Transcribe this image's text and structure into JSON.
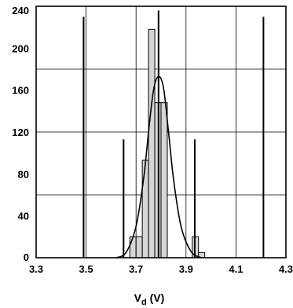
{
  "chart_data": {
    "type": "histogram",
    "title": "",
    "xlabel": "V",
    "xlabel_subscript": "d",
    "xlabel_unit": " (V)",
    "x_ticks": [
      "3.3",
      "3.5",
      "3.7",
      "3.9",
      "4.1",
      "4.3"
    ],
    "y_ticks": [
      "0",
      "40",
      "80",
      "120",
      "160",
      "200",
      "240"
    ],
    "xlim": [
      3.3,
      4.3
    ],
    "ylim": [
      0,
      240
    ],
    "grid": true,
    "bin_width": 0.025,
    "bins": [
      {
        "x_start": 3.675,
        "x_end": 3.7,
        "count": 20
      },
      {
        "x_start": 3.7,
        "x_end": 3.725,
        "count": 20
      },
      {
        "x_start": 3.725,
        "x_end": 3.75,
        "count": 93
      },
      {
        "x_start": 3.75,
        "x_end": 3.775,
        "count": 218
      },
      {
        "x_start": 3.775,
        "x_end": 3.8,
        "count": 148
      },
      {
        "x_start": 3.8,
        "x_end": 3.825,
        "count": 148
      },
      {
        "x_start": 3.925,
        "x_end": 3.95,
        "count": 20
      },
      {
        "x_start": 3.95,
        "x_end": 3.975,
        "count": 5
      }
    ],
    "distribution_curve": [
      {
        "x": 3.62,
        "y": 0
      },
      {
        "x": 3.66,
        "y": 5
      },
      {
        "x": 3.7,
        "y": 30
      },
      {
        "x": 3.73,
        "y": 75
      },
      {
        "x": 3.75,
        "y": 120
      },
      {
        "x": 3.77,
        "y": 160
      },
      {
        "x": 3.79,
        "y": 173
      },
      {
        "x": 3.81,
        "y": 162
      },
      {
        "x": 3.83,
        "y": 120
      },
      {
        "x": 3.85,
        "y": 75
      },
      {
        "x": 3.88,
        "y": 30
      },
      {
        "x": 3.92,
        "y": 6
      },
      {
        "x": 3.96,
        "y": 0
      }
    ],
    "limit_lines": [
      {
        "x": 3.49,
        "y_top": 230
      },
      {
        "x": 3.65,
        "y_top": 113
      },
      {
        "x": 3.79,
        "y_top": 236
      },
      {
        "x": 3.935,
        "y_top": 113
      },
      {
        "x": 4.21,
        "y_top": 230
      }
    ],
    "colors": {
      "bar_fill": "#d6d6d6",
      "line": "#000000",
      "grid": "#000000"
    }
  }
}
